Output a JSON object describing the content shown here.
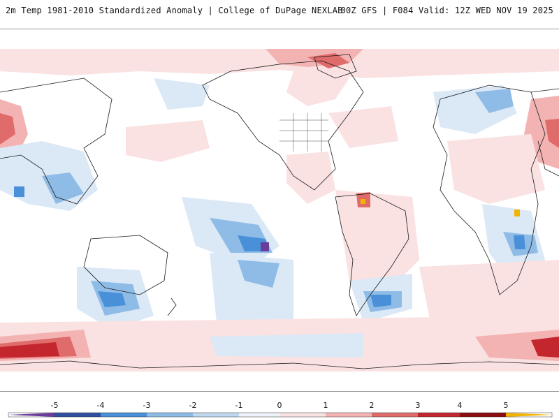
{
  "header": {
    "title": "2m Temp 1981-2010 Standardized Anomaly | College of DuPage NEXLAB",
    "run_info": "00Z GFS | F084 Valid: 12Z WED NOV 19 2025"
  },
  "map": {
    "projection": "cylindrical",
    "colors": {
      "neg5": "#6a3d9a",
      "neg4": "#2f4f9f",
      "neg3": "#4a90d9",
      "neg2": "#8fbce6",
      "neg1": "#dbe8f6",
      "zero": "#ffffff",
      "pos1": "#fbe2e2",
      "pos2": "#f4b3b3",
      "pos3": "#e06b6b",
      "pos4": "#c4262e",
      "pos5": "#8b0d12",
      "extreme": "#f2b400",
      "coast": "#1a1a1a"
    }
  },
  "colorbar": {
    "ticks": [
      "-5",
      "-4",
      "-3",
      "-2",
      "-1",
      "0",
      "1",
      "2",
      "3",
      "4",
      "5"
    ]
  }
}
